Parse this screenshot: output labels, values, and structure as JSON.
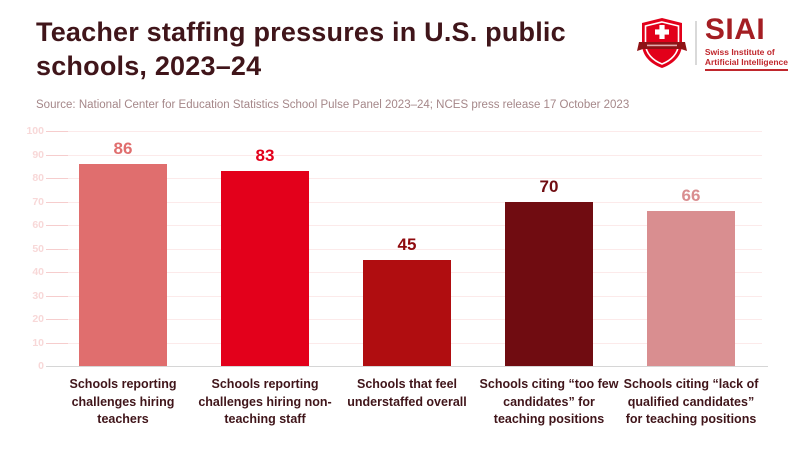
{
  "header": {
    "title": "Teacher staffing pressures in U.S. public schools, 2023–24",
    "source": "Source: National Center for Education Statistics School Pulse Panel 2023–24; NCES press release 17 October 2023"
  },
  "logo": {
    "acronym": "SIAI",
    "subtitle_line1": "Swiss Institute of",
    "subtitle_line2": "Artificial Intelligence",
    "shield_color": "#e2001a",
    "banner_color": "#8f1316",
    "text_color": "#a41e23"
  },
  "chart_data": {
    "type": "bar",
    "title": "Teacher staffing pressures in U.S. public schools, 2023–24",
    "categories": [
      "Schools reporting challenges hiring teachers",
      "Schools reporting challenges hiring non-teaching staff",
      "Schools that feel understaffed overall",
      "Schools citing “too few candidates” for teaching positions",
      "Schools citing “lack of qualified candidates” for teaching positions"
    ],
    "values": [
      86,
      83,
      45,
      70,
      66
    ],
    "bar_colors": [
      "#e06e6e",
      "#e3001b",
      "#b00d10",
      "#700c11",
      "#d98e90"
    ],
    "value_label_colors": [
      "#e06e6e",
      "#e3001b",
      "#8f0a0e",
      "#700c11",
      "#d98e90"
    ],
    "xlabel": "",
    "ylabel": "",
    "ylim": [
      0,
      100
    ],
    "ytick_step": 10,
    "grid": true,
    "legend": false
  }
}
